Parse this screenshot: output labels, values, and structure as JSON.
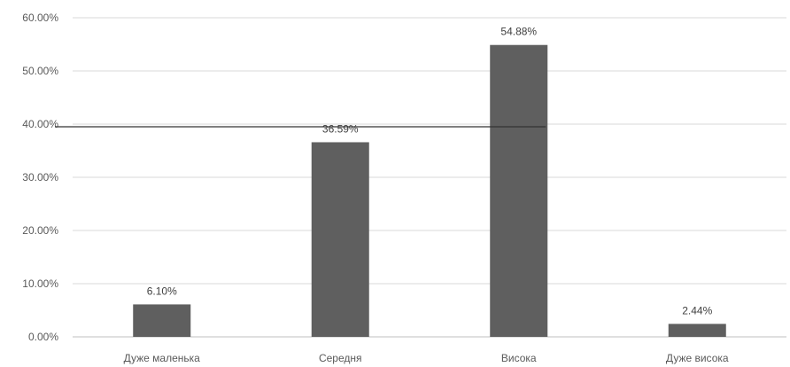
{
  "chart_data": {
    "type": "bar",
    "categories": [
      "Дуже маленька",
      "Середня",
      "Висока",
      "Дуже висока"
    ],
    "values": [
      6.1,
      36.59,
      54.88,
      2.44
    ],
    "data_labels": [
      "6.10%",
      "36.59%",
      "54.88%",
      "2.44%"
    ],
    "ylim": [
      0,
      60
    ],
    "yticks": [
      0,
      10,
      20,
      30,
      40,
      50,
      60
    ],
    "ytick_labels": [
      "0.00%",
      "10.00%",
      "20.00%",
      "30.00%",
      "40.00%",
      "50.00%",
      "60.00%"
    ],
    "grid": true,
    "legend": "none",
    "bar_color": "#5f5f5f",
    "reference_line": {
      "y": 39.5,
      "from_category_start": 0,
      "to_category_end": 2,
      "color": "#333333"
    }
  }
}
